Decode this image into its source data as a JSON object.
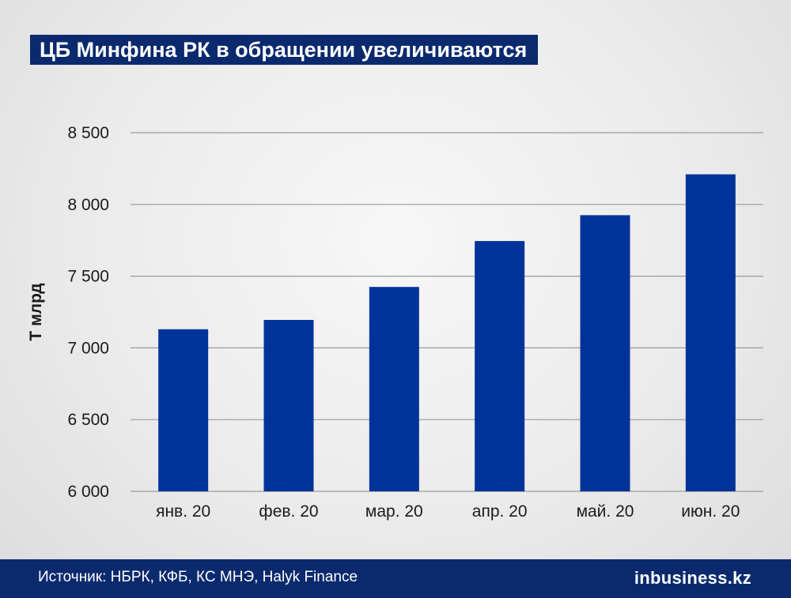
{
  "chart_data": {
    "type": "bar",
    "title": "ЦБ Минфина РК в обращении увеличиваются",
    "ylabel": "Т млрд",
    "xlabel": "",
    "categories": [
      "янв. 20",
      "фев. 20",
      "мар. 20",
      "апр. 20",
      "май. 20",
      "июн. 20"
    ],
    "values": [
      7130,
      7195,
      7425,
      7745,
      7925,
      8210
    ],
    "ylim": [
      6000,
      8500
    ],
    "yticks": [
      6000,
      6500,
      7000,
      7500,
      8000,
      8500
    ],
    "ytick_labels": [
      "6 000",
      "6 500",
      "7 000",
      "7 500",
      "8 000",
      "8 500"
    ],
    "grid": true,
    "bar_color": "#00339a"
  },
  "footer": {
    "source": "Источник: НБРК, КФБ, КС МНЭ, Halyk Finance",
    "brand": "inbusiness.kz"
  }
}
